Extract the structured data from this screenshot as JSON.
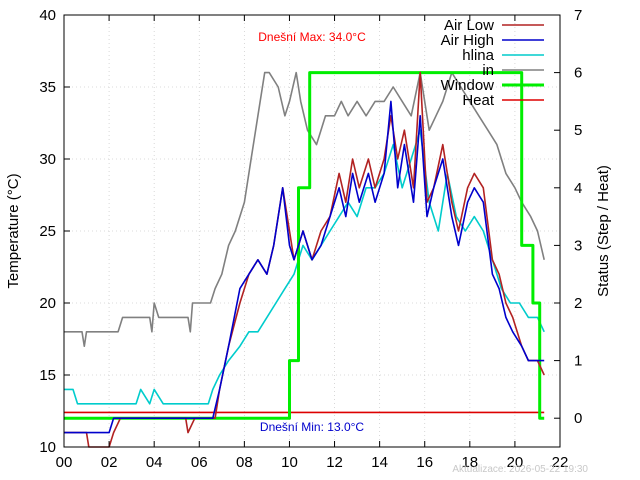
{
  "chart_data": {
    "type": "line",
    "ylabel": "Temperature (°C)",
    "y2label": "Status (Step / Heat)",
    "xlim": [
      0,
      22
    ],
    "ylim": [
      10,
      40
    ],
    "y2lim": [
      -0.5,
      7
    ],
    "grid": true,
    "legend_position": "top-right",
    "x_tick_labels": [
      "00",
      "02",
      "04",
      "06",
      "08",
      "10",
      "12",
      "14",
      "16",
      "18",
      "20",
      "22"
    ],
    "y_tick_labels": [
      "10",
      "15",
      "20",
      "25",
      "30",
      "35",
      "40"
    ],
    "y2_tick_labels": [
      "0",
      "1",
      "2",
      "3",
      "4",
      "5",
      "6",
      "7"
    ],
    "annotations": {
      "max_label": "Dnešní Max: 34.0°C",
      "min_label": "Dnešní Min: 13.0°C",
      "updated": "Aktualizace: 2026-05-22 19:30"
    },
    "series": [
      {
        "name": "Air Low",
        "color": "#b22222",
        "axis": "y1",
        "x": [
          0,
          1.0,
          1.1,
          2.0,
          2.2,
          2.5,
          5.4,
          5.5,
          5.8,
          6.7,
          6.9,
          7.3,
          7.8,
          8.2,
          8.6,
          9.0,
          9.3,
          9.7,
          10.0,
          10.2,
          10.6,
          11.0,
          11.4,
          11.8,
          12.2,
          12.5,
          12.8,
          13.1,
          13.5,
          13.8,
          14.2,
          14.5,
          14.8,
          15.1,
          15.5,
          15.8,
          16.1,
          16.4,
          16.8,
          17.2,
          17.5,
          17.9,
          18.2,
          18.6,
          19.0,
          19.3,
          19.6,
          19.9,
          20.3,
          20.6,
          21.0,
          21.3
        ],
        "values": [
          11,
          11,
          10,
          10,
          11,
          12,
          12,
          11,
          12,
          12,
          14,
          17,
          20,
          22,
          23,
          22,
          24,
          28,
          25,
          23,
          25,
          23,
          25,
          26,
          29,
          27,
          30,
          28,
          30,
          28,
          30,
          33,
          30,
          32,
          28,
          36,
          27,
          28,
          31,
          27,
          25,
          28,
          29,
          28,
          23,
          22,
          20,
          19,
          17,
          16,
          16,
          15
        ]
      },
      {
        "name": "Air High",
        "color": "#0000cc",
        "axis": "y1",
        "x": [
          0,
          2.0,
          2.2,
          2.5,
          5.4,
          5.8,
          6.6,
          6.9,
          7.3,
          7.8,
          8.2,
          8.6,
          9.0,
          9.3,
          9.7,
          10.0,
          10.2,
          10.6,
          11.0,
          11.4,
          11.8,
          12.2,
          12.5,
          12.8,
          13.1,
          13.5,
          13.8,
          14.2,
          14.5,
          14.8,
          15.1,
          15.5,
          15.8,
          16.1,
          16.4,
          16.8,
          17.2,
          17.5,
          17.9,
          18.2,
          18.6,
          19.0,
          19.3,
          19.6,
          19.9,
          20.3,
          20.6,
          21.0,
          21.3
        ],
        "values": [
          11,
          11,
          12,
          12,
          12,
          12,
          12,
          14,
          17,
          21,
          22,
          23,
          22,
          24,
          28,
          24,
          23,
          25,
          23,
          24,
          26,
          28,
          26,
          29,
          27,
          29,
          27,
          29,
          34,
          28,
          31,
          27,
          33,
          26,
          28,
          30,
          26,
          24,
          27,
          28,
          27,
          22,
          21,
          19,
          18,
          17,
          16,
          16,
          16
        ]
      },
      {
        "name": "hlina",
        "color": "#00cccc",
        "axis": "y1",
        "x": [
          0,
          0.4,
          0.6,
          3.2,
          3.4,
          3.8,
          4.0,
          4.4,
          6.4,
          6.6,
          6.9,
          7.3,
          7.8,
          8.2,
          8.6,
          9.0,
          9.4,
          9.8,
          10.2,
          10.6,
          11.0,
          11.4,
          11.8,
          12.2,
          12.6,
          13.0,
          13.4,
          13.8,
          14.2,
          14.6,
          15.0,
          15.4,
          15.8,
          16.2,
          16.6,
          17.0,
          17.4,
          17.8,
          18.2,
          18.6,
          19.0,
          19.4,
          19.8,
          20.2,
          20.6,
          21.0,
          21.3
        ],
        "values": [
          14,
          14,
          13,
          13,
          14,
          13,
          14,
          13,
          13,
          14,
          15,
          16,
          17,
          18,
          18,
          19,
          20,
          21,
          22,
          24,
          23,
          24,
          25,
          26,
          27,
          26,
          28,
          28,
          29,
          31,
          28,
          30,
          32,
          27,
          25,
          29,
          26,
          25,
          26,
          25,
          23,
          21,
          20,
          20,
          19,
          19,
          18
        ]
      },
      {
        "name": "in",
        "color": "#808080",
        "axis": "y1",
        "x": [
          0,
          0.8,
          0.9,
          1.0,
          2.4,
          2.6,
          3.8,
          3.9,
          4.0,
          4.2,
          5.5,
          5.6,
          5.7,
          6.5,
          6.7,
          7.0,
          7.3,
          7.6,
          8.0,
          8.3,
          8.6,
          8.9,
          9.1,
          9.5,
          9.8,
          10.0,
          10.3,
          10.5,
          10.8,
          11.2,
          11.6,
          12.0,
          12.3,
          12.6,
          13.0,
          13.4,
          13.8,
          14.2,
          14.6,
          15.0,
          15.4,
          15.8,
          16.2,
          16.5,
          16.8,
          17.2,
          17.6,
          18.0,
          18.4,
          18.8,
          19.2,
          19.6,
          20.0,
          20.3,
          20.7,
          21.0,
          21.3
        ],
        "values": [
          18,
          18,
          17,
          18,
          18,
          19,
          19,
          18,
          20,
          19,
          19,
          18,
          20,
          20,
          21,
          22,
          24,
          25,
          27,
          30,
          33,
          36,
          36,
          35,
          33,
          34,
          36,
          34,
          32,
          31,
          33,
          33,
          34,
          33,
          34,
          33,
          34,
          34,
          35,
          34,
          33,
          36,
          32,
          33,
          34,
          36,
          35,
          34,
          33,
          32,
          31,
          29,
          28,
          27,
          26,
          25,
          23
        ]
      },
      {
        "name": "Window",
        "color": "#00ee00",
        "axis": "y2",
        "x": [
          0,
          10.0,
          10.0,
          10.4,
          10.4,
          10.9,
          10.9,
          20.3,
          20.3,
          20.8,
          20.8,
          21.1,
          21.1,
          21.3
        ],
        "values": [
          0,
          0,
          1,
          1,
          4,
          4,
          6,
          6,
          3,
          3,
          2,
          2,
          0,
          0
        ]
      },
      {
        "name": "Heat",
        "color": "#dd0000",
        "axis": "y2",
        "x": [
          0,
          21.3
        ],
        "values": [
          0.1,
          0.1
        ]
      }
    ]
  }
}
